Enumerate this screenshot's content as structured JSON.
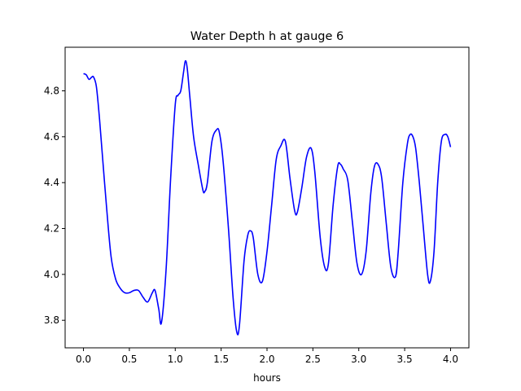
{
  "chart_data": {
    "type": "line",
    "title": "Water Depth h at gauge 6",
    "xlabel": "hours",
    "ylabel": "",
    "xlim": [
      -0.2,
      4.2
    ],
    "ylim": [
      3.68,
      4.99
    ],
    "xticks": [
      0.0,
      0.5,
      1.0,
      1.5,
      2.0,
      2.5,
      3.0,
      3.5,
      4.0
    ],
    "xtick_labels": [
      "0.0",
      "0.5",
      "1.0",
      "1.5",
      "2.0",
      "2.5",
      "3.0",
      "3.5",
      "4.0"
    ],
    "yticks": [
      3.8,
      4.0,
      4.2,
      4.4,
      4.6,
      4.8
    ],
    "ytick_labels": [
      "3.8",
      "4.0",
      "4.2",
      "4.4",
      "4.6",
      "4.8"
    ],
    "grid": false,
    "line_color": "#0000ff",
    "series": [
      {
        "x": [
          0.0,
          0.03,
          0.06,
          0.09,
          0.11,
          0.14,
          0.17,
          0.2,
          0.25,
          0.3,
          0.35,
          0.4,
          0.45,
          0.5,
          0.55,
          0.6,
          0.65,
          0.7,
          0.75,
          0.78,
          0.82,
          0.85,
          0.9,
          0.95,
          1.0,
          1.03,
          1.06,
          1.09,
          1.11,
          1.13,
          1.16,
          1.2,
          1.25,
          1.3,
          1.32,
          1.35,
          1.4,
          1.45,
          1.48,
          1.52,
          1.58,
          1.63,
          1.67,
          1.7,
          1.75,
          1.79,
          1.82,
          1.85,
          1.9,
          1.95,
          2.0,
          2.05,
          2.1,
          2.15,
          2.2,
          2.25,
          2.3,
          2.33,
          2.38,
          2.43,
          2.48,
          2.52,
          2.58,
          2.63,
          2.67,
          2.72,
          2.77,
          2.8,
          2.83,
          2.88,
          2.93,
          2.98,
          3.03,
          3.08,
          3.13,
          3.17,
          3.21,
          3.25,
          3.3,
          3.35,
          3.4,
          3.43,
          3.48,
          3.53,
          3.56,
          3.59,
          3.62,
          3.66,
          3.7,
          3.75,
          3.78,
          3.82,
          3.86,
          3.9,
          3.94,
          3.97,
          4.0
        ],
        "y": [
          4.875,
          4.87,
          4.85,
          4.86,
          4.86,
          4.82,
          4.7,
          4.55,
          4.3,
          4.08,
          3.98,
          3.94,
          3.92,
          3.92,
          3.93,
          3.93,
          3.9,
          3.88,
          3.92,
          3.93,
          3.85,
          3.79,
          4.02,
          4.42,
          4.74,
          4.78,
          4.8,
          4.88,
          4.93,
          4.9,
          4.77,
          4.6,
          4.48,
          4.37,
          4.36,
          4.4,
          4.58,
          4.63,
          4.62,
          4.5,
          4.2,
          3.9,
          3.75,
          3.78,
          4.06,
          4.17,
          4.19,
          4.16,
          4.0,
          3.97,
          4.1,
          4.3,
          4.5,
          4.56,
          4.58,
          4.42,
          4.28,
          4.27,
          4.38,
          4.51,
          4.55,
          4.45,
          4.16,
          4.03,
          4.05,
          4.3,
          4.47,
          4.48,
          4.46,
          4.41,
          4.23,
          4.05,
          4.0,
          4.1,
          4.35,
          4.47,
          4.48,
          4.42,
          4.22,
          4.03,
          3.99,
          4.1,
          4.4,
          4.57,
          4.61,
          4.6,
          4.55,
          4.4,
          4.22,
          4.0,
          3.97,
          4.1,
          4.4,
          4.58,
          4.61,
          4.6,
          4.555
        ]
      }
    ]
  }
}
